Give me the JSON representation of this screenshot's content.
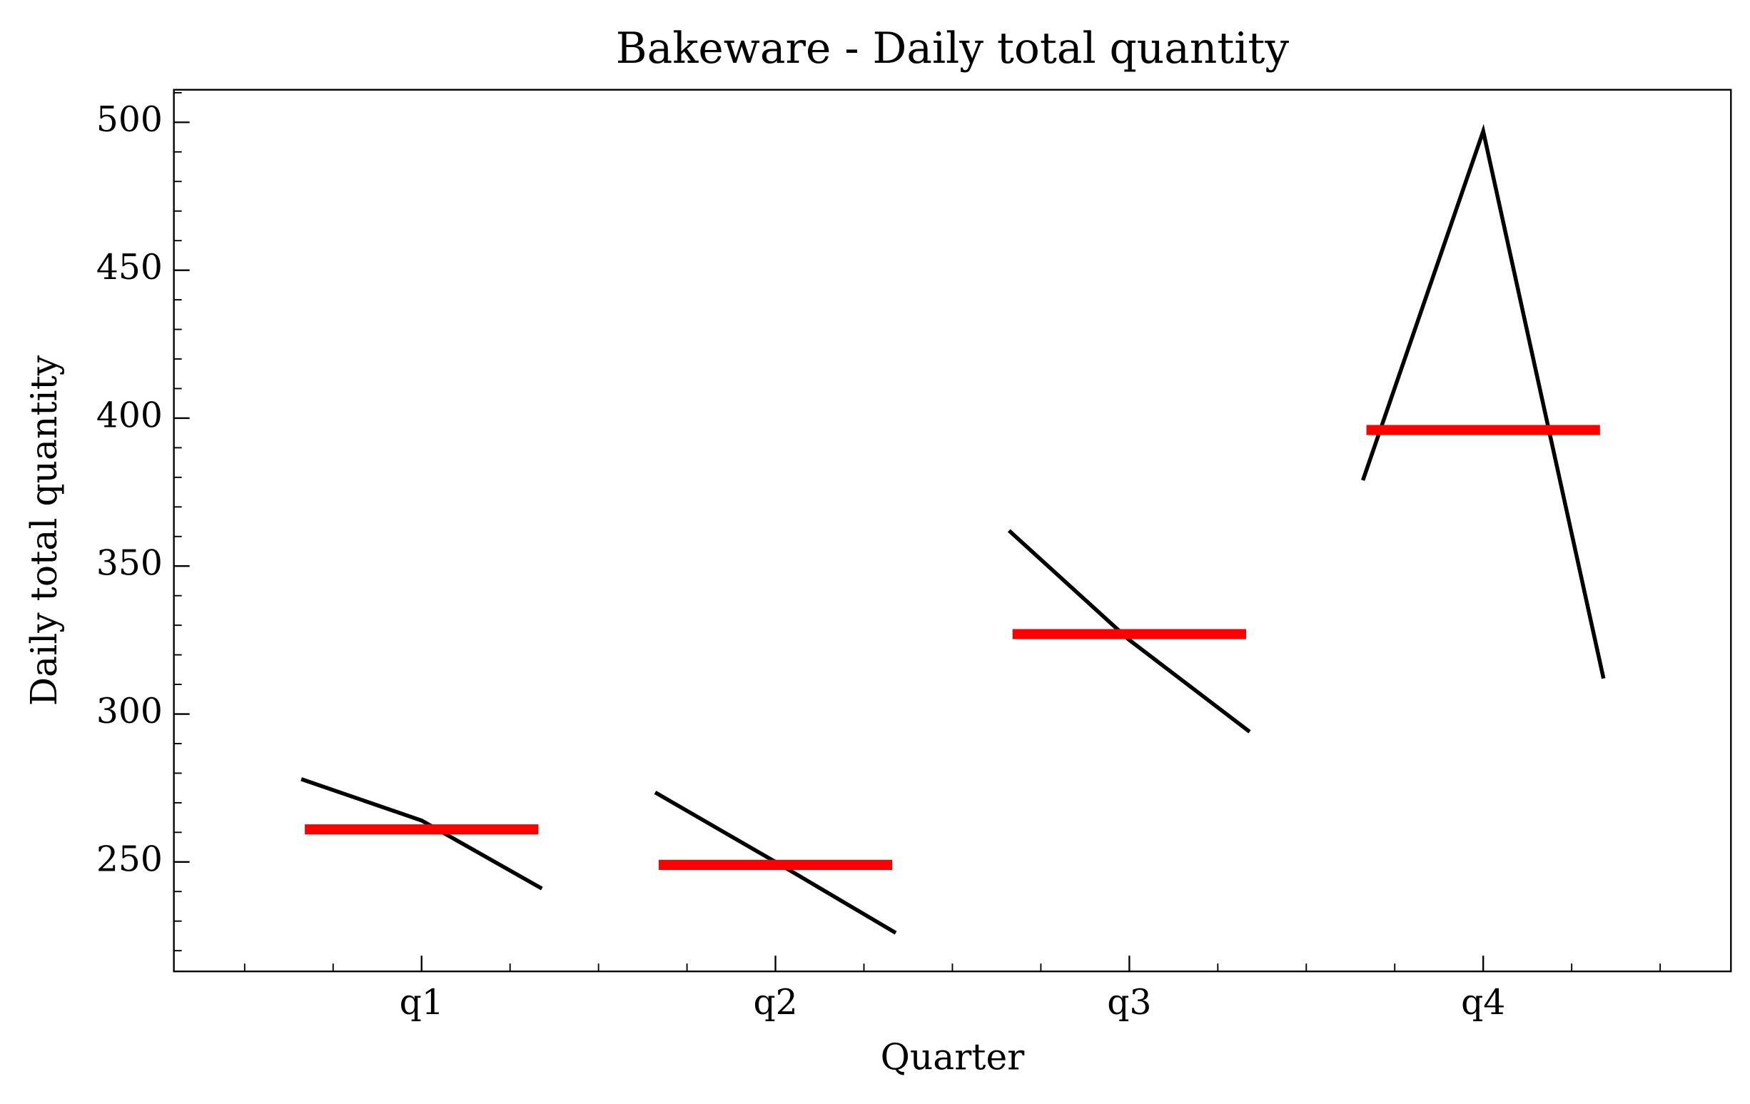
{
  "chart_data": {
    "type": "quarter_plot",
    "title": "Bakeware - Daily total quantity",
    "xlabel": "Quarter",
    "ylabel": "Daily total quantity",
    "categories": [
      "q1",
      "q2",
      "q3",
      "q4"
    ],
    "values": [
      [
        278,
        264,
        241
      ],
      [
        273.5,
        250,
        226
      ],
      [
        362,
        325,
        294
      ],
      [
        379,
        497,
        312
      ]
    ],
    "means": [
      261,
      249,
      327,
      396
    ],
    "color": "#000000",
    "mean_color": "#ff0000",
    "xlim": [
      -0.7,
      3.7
    ],
    "xminorticks": [
      -0.5,
      -0.25,
      0.25,
      0.5,
      0.75,
      1.25,
      1.5,
      1.75,
      2.25,
      2.5,
      2.75,
      3.25,
      3.5
    ],
    "ylim": [
      213,
      511
    ],
    "yticks": [
      250,
      300,
      350,
      400,
      450,
      500
    ],
    "yminorticks": [
      220,
      230,
      240,
      260,
      270,
      280,
      290,
      310,
      320,
      330,
      340,
      360,
      370,
      380,
      390,
      410,
      420,
      430,
      440,
      460,
      470,
      480,
      490,
      510
    ]
  }
}
